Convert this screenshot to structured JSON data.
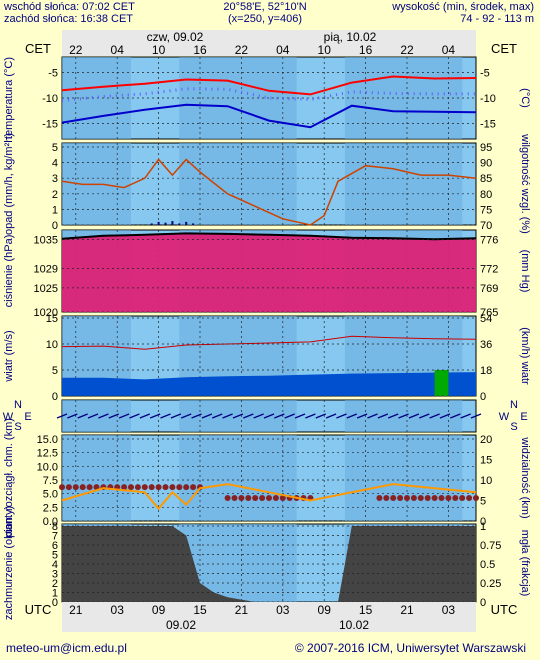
{
  "header": {
    "sunrise": "wschód słońca: 07:02 CET",
    "sunset": "zachód słońca: 16:38 CET",
    "coords": "20°58'E, 52°10'N",
    "grid": "(x=250,  y=406)",
    "elevation_label": "wysokość (min, środek, max)",
    "elevation_values": "74 - 92 - 113 m"
  },
  "footer": {
    "email": "meteo-um@icm.edu.pl",
    "copyright": "© 2007-2016 ICM, Uniwersytet Warszawski"
  },
  "time_axis": {
    "top_tz": "CET",
    "top_dates": [
      "czw, 09.02",
      "pią, 10.02"
    ],
    "top_hours": [
      "22",
      "04",
      "10",
      "16",
      "22",
      "04",
      "10",
      "16",
      "22",
      "04"
    ],
    "bottom_tz": "UTC",
    "bottom_hours": [
      "21",
      "03",
      "09",
      "15",
      "21",
      "03",
      "09",
      "15",
      "21",
      "03"
    ],
    "bottom_dates": [
      "09.02",
      "10.02"
    ]
  },
  "colors": {
    "panel_bg": "#87c8f0",
    "panel_dark": "#6aaee0",
    "temp_max": "#ff0000",
    "temp_min": "#0000cc",
    "temp_mid": "#6060ff",
    "humidity": "#cc4400",
    "precip": "#000080",
    "pressure_fill": "#dd2277",
    "wind_mean": "#0050d0",
    "wind_gust": "#cc0000",
    "visibility": "#ff9900",
    "cloud_base": "#882222",
    "cloud_cover": "#444444"
  },
  "chart_data": [
    {
      "type": "line",
      "name": "temperature",
      "ylabel_left": "temperatura (°C)",
      "ylabel_right": "(°C)",
      "y_ticks": [
        -5,
        -10,
        -15
      ],
      "ylim": [
        -18,
        -2
      ],
      "x": [
        0,
        6,
        12,
        18,
        24,
        30,
        36,
        42,
        48,
        54,
        60
      ],
      "series": [
        {
          "name": "max",
          "values": [
            -8.5,
            -7.8,
            -7.2,
            -6.4,
            -6.6,
            -8.6,
            -9.3,
            -7.0,
            -5.8,
            -6.2,
            -6.1
          ]
        },
        {
          "name": "mid",
          "values": [
            -10.5,
            -9.7,
            -9.2,
            -8.2,
            -8.3,
            -10.0,
            -10.3,
            -8.8,
            -9.1,
            -9.2,
            -9.2
          ]
        },
        {
          "name": "min",
          "values": [
            -14.8,
            -13.5,
            -12.3,
            -11.3,
            -11.6,
            -14.4,
            -15.7,
            -11.5,
            -12.6,
            -12.7,
            -12.8
          ]
        }
      ]
    },
    {
      "type": "line",
      "name": "precipitation_humidity",
      "ylabel_left": "opad (mm/h, kg/m²h)",
      "ylabel_right": "wilgotność wzgl. (%)",
      "y_ticks_left": [
        0,
        1,
        2,
        3,
        4,
        5
      ],
      "y_ticks_right": [
        70,
        75,
        80,
        85,
        90,
        95
      ],
      "humidity_x": [
        0,
        3,
        6,
        9,
        12,
        14,
        16,
        18,
        20,
        24,
        28,
        32,
        36,
        38,
        40,
        44,
        48,
        52,
        56,
        60
      ],
      "humidity": [
        84,
        83,
        83,
        82,
        85,
        91,
        86,
        91,
        87,
        80,
        76,
        72,
        70,
        73,
        84,
        89,
        88,
        86,
        86,
        85
      ],
      "precip_x": [
        13,
        14,
        15,
        16,
        17,
        18,
        19
      ],
      "precip": [
        0.1,
        0.2,
        0.15,
        0.25,
        0.1,
        0.2,
        0.1
      ]
    },
    {
      "type": "area",
      "name": "pressure",
      "ylabel_left": "ciśnienie (hPa)",
      "ylabel_right": "(mm Hg)",
      "y_ticks_left": [
        1035,
        1029,
        1025,
        1020
      ],
      "y_ticks_right": [
        776,
        772,
        769,
        765
      ],
      "ylim": [
        1020,
        1037
      ],
      "x": [
        0,
        6,
        12,
        18,
        24,
        30,
        36,
        42,
        48,
        54,
        60
      ],
      "values": [
        1035.2,
        1035.8,
        1036.0,
        1036.3,
        1036.2,
        1036.0,
        1035.8,
        1035.4,
        1035.3,
        1035.1,
        1035.3
      ]
    },
    {
      "type": "bar",
      "name": "wind",
      "ylabel_left": "wiatr (m/s)",
      "ylabel_right": "(km/h) wiatr",
      "y_ticks_left": [
        0,
        5,
        10,
        15
      ],
      "y_ticks_right": [
        0,
        18,
        36,
        54
      ],
      "ylim": [
        0,
        15
      ],
      "x": [
        0,
        6,
        12,
        18,
        24,
        30,
        36,
        42,
        48,
        54,
        60
      ],
      "mean": [
        3.5,
        3.5,
        3.2,
        3.6,
        3.8,
        3.9,
        4.1,
        4.3,
        4.4,
        4.5,
        4.6
      ],
      "gust": [
        9.5,
        9.6,
        9.0,
        9.8,
        10.0,
        10.2,
        10.4,
        11.5,
        11.2,
        11.0,
        10.9
      ]
    },
    {
      "type": "line",
      "name": "visibility_cloudbase",
      "ylabel_left": "pion. rozciągł. chm. (km)",
      "ylabel_right": "widzialność (km)",
      "y_ticks_left": [
        0,
        2.5,
        5.0,
        7.5,
        10.0,
        12.5,
        15.0
      ],
      "y_ticks_right": [
        0,
        5,
        10,
        15,
        20
      ],
      "visibility_x": [
        0,
        6,
        12,
        14,
        16,
        18,
        20,
        24,
        30,
        36,
        48,
        54,
        60
      ],
      "visibility": [
        5,
        8,
        7,
        3,
        7,
        4,
        8,
        9,
        7,
        5,
        9,
        8,
        7
      ]
    },
    {
      "type": "area",
      "name": "cloud_fog",
      "ylabel_left": "zachmurzenie (oktanty)",
      "ylabel_right": "mgła (frakcja)",
      "y_ticks_left": [
        0,
        1,
        2,
        3,
        4,
        5,
        6,
        7,
        8
      ],
      "y_ticks_right": [
        "0",
        "0.25",
        "0.5",
        "0.75",
        "1"
      ],
      "x": [
        0,
        4,
        8,
        12,
        16,
        18,
        20,
        22,
        24,
        28,
        32,
        36,
        40,
        42,
        44,
        48,
        52,
        56,
        60
      ],
      "values": [
        8,
        8,
        8,
        8,
        8,
        7,
        2,
        1,
        0.5,
        0,
        0,
        0,
        0,
        8,
        8,
        8,
        8,
        8,
        8
      ]
    }
  ]
}
